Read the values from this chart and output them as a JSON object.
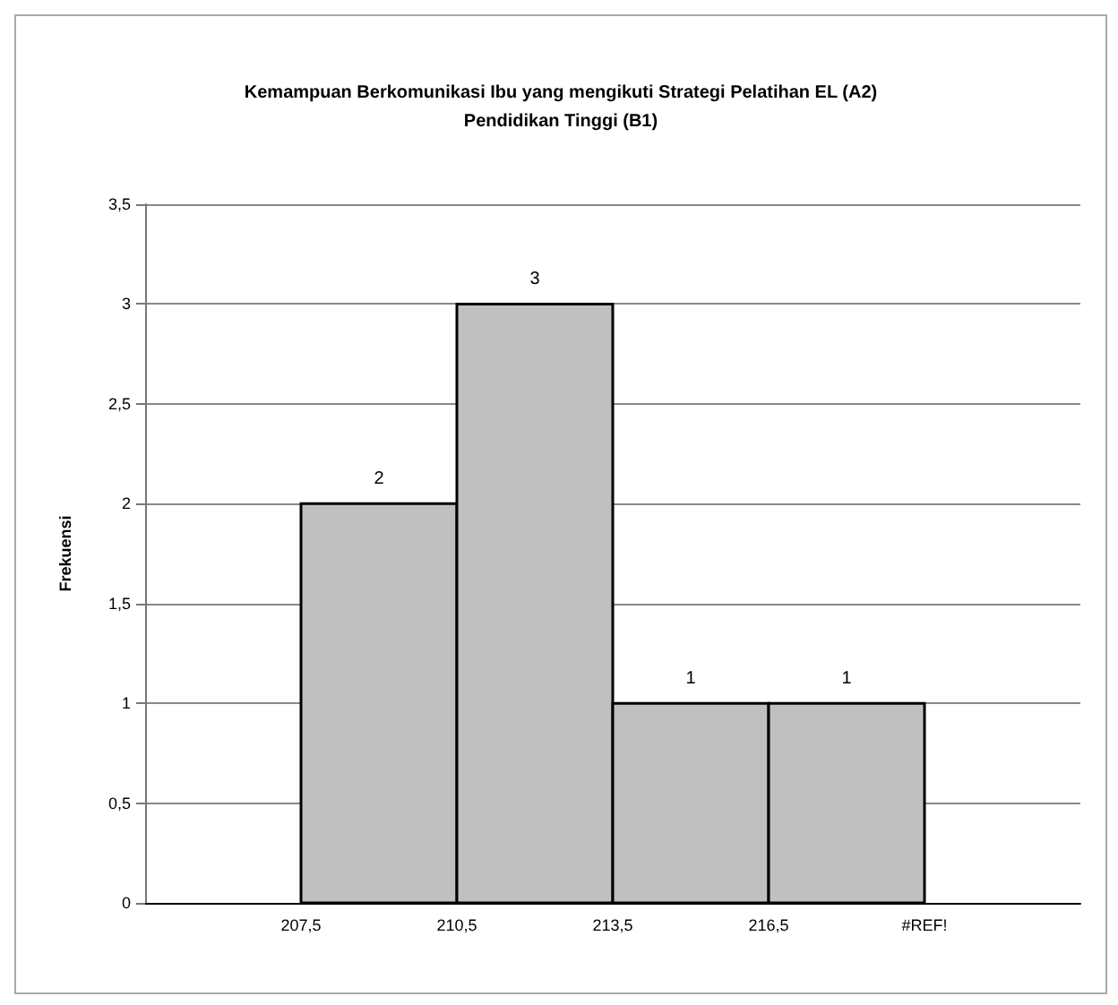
{
  "chart_data": {
    "type": "histogram",
    "title": "Kemampuan Berkomunikasi Ibu yang mengikuti Strategi Pelatihan EL (A2)\nPendidikan Tinggi (B1)",
    "ylabel": "Frekuensi",
    "bins": [
      207.5,
      210.5,
      213.5,
      216.5,
      219.5
    ],
    "values": [
      2,
      3,
      1,
      1
    ],
    "color": "#c0c0c0",
    "data_labels": true,
    "xlim": [
      204.5,
      222.5
    ],
    "xticks": [
      {
        "value": 207.5,
        "label": "207,5"
      },
      {
        "value": 210.5,
        "label": "210,5"
      },
      {
        "value": 213.5,
        "label": "213,5"
      },
      {
        "value": 216.5,
        "label": "216,5"
      },
      {
        "value": 219.5,
        "label": "#REF!"
      }
    ],
    "ylim": [
      0,
      3.5
    ],
    "yticks": [
      0,
      {
        "value": 0.5,
        "label": "0,5"
      },
      1,
      {
        "value": 1.5,
        "label": "1,5"
      },
      2,
      {
        "value": 2.5,
        "label": "2,5"
      },
      3,
      {
        "value": 3.5,
        "label": "3,5"
      }
    ],
    "grid": "y"
  }
}
